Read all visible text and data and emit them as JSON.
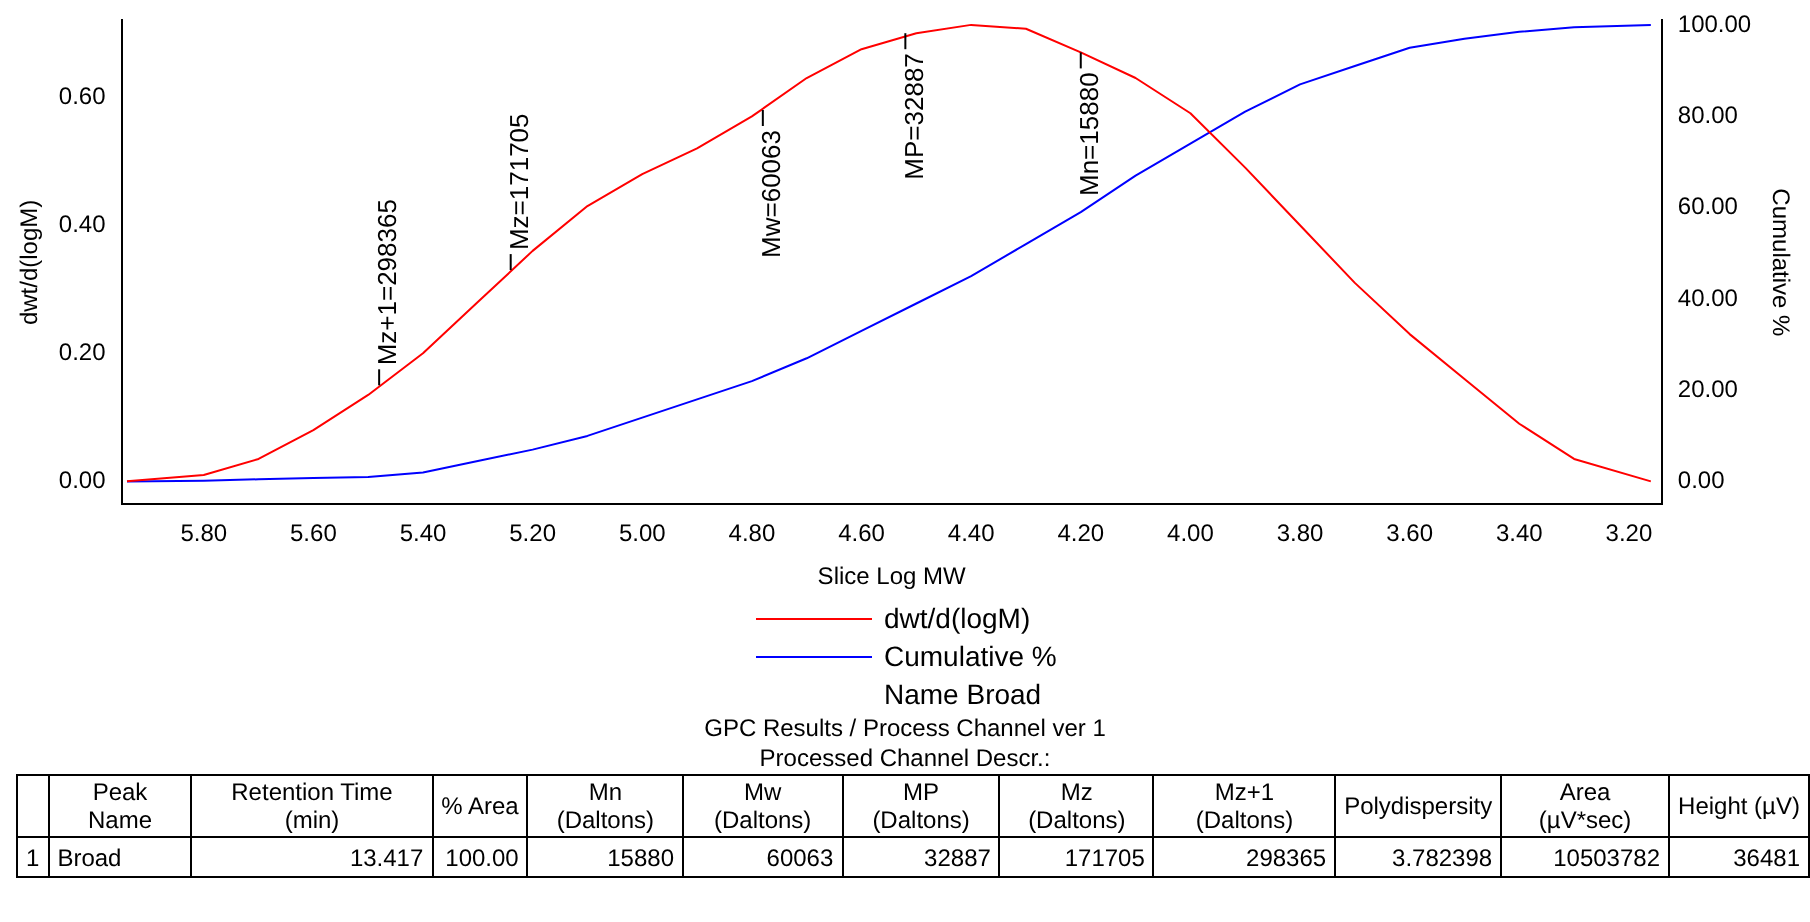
{
  "chart_data": {
    "type": "line",
    "xlabel": "Slice Log MW",
    "ylabel": "dwt/d(logM)",
    "y2label": "Cumulative %",
    "xlim": [
      5.95,
      3.14
    ],
    "xticks": [
      {
        "value": 5.8,
        "label": "5.80"
      },
      {
        "value": 5.6,
        "label": "5.60"
      },
      {
        "value": 5.4,
        "label": "5.40"
      },
      {
        "value": 5.2,
        "label": "5.20"
      },
      {
        "value": 5.0,
        "label": "5.00"
      },
      {
        "value": 4.8,
        "label": "4.80"
      },
      {
        "value": 4.6,
        "label": "4.60"
      },
      {
        "value": 4.4,
        "label": "4.40"
      },
      {
        "value": 4.2,
        "label": "4.20"
      },
      {
        "value": 4.0,
        "label": "4.00"
      },
      {
        "value": 3.8,
        "label": "3.80"
      },
      {
        "value": 3.6,
        "label": "3.60"
      },
      {
        "value": 3.4,
        "label": "3.40"
      },
      {
        "value": 3.2,
        "label": "3.20"
      }
    ],
    "ylim": [
      -0.036,
      0.72
    ],
    "yticks": [
      {
        "value": 0,
        "label": "0.00"
      },
      {
        "value": 0.2,
        "label": "0.20"
      },
      {
        "value": 0.4,
        "label": "0.40"
      },
      {
        "value": 0.6,
        "label": "0.60"
      }
    ],
    "y2lim": [
      -5,
      101
    ],
    "y2ticks": [
      {
        "value": 0,
        "label": "0.00"
      },
      {
        "value": 20,
        "label": "20.00"
      },
      {
        "value": 40,
        "label": "40.00"
      },
      {
        "value": 60,
        "label": "60.00"
      },
      {
        "value": 80,
        "label": "80.00"
      },
      {
        "value": 100,
        "label": "100.00"
      }
    ],
    "x": [
      5.94,
      5.8,
      5.7,
      5.6,
      5.5,
      5.4,
      5.3,
      5.2,
      5.1,
      5.0,
      4.9,
      4.8,
      4.7,
      4.6,
      4.5,
      4.4,
      4.3,
      4.2,
      4.1,
      4.0,
      3.9,
      3.8,
      3.7,
      3.6,
      3.5,
      3.4,
      3.3,
      3.16
    ],
    "series": [
      {
        "name": "dwt/d(logM)",
        "color": "#ff0000",
        "values": [
          0,
          0.01,
          0.035,
          0.08,
          0.135,
          0.2,
          0.28,
          0.36,
          0.43,
          0.48,
          0.52,
          0.57,
          0.63,
          0.675,
          0.7,
          0.713,
          0.707,
          0.67,
          0.63,
          0.575,
          0.49,
          0.4,
          0.31,
          0.23,
          0.16,
          0.09,
          0.035,
          0
        ]
      },
      {
        "name": "Cumulative %",
        "color": "#0000ff",
        "axis": "y2",
        "values": [
          0,
          0.2,
          0.5,
          0.8,
          1,
          2,
          4.5,
          7,
          10,
          14,
          18,
          22,
          27,
          33,
          39,
          45,
          52,
          59,
          67,
          74,
          81,
          87,
          91,
          95,
          97,
          98.5,
          99.5,
          100
        ]
      }
    ],
    "legend": "bottom",
    "grid": false,
    "marker": "none",
    "line_style": "solid",
    "annotations": [
      {
        "text": "Mz+1=298365",
        "x": 5.48,
        "y": 0.15
      },
      {
        "text": "Mz=171705",
        "x": 5.24,
        "y": 0.33
      },
      {
        "text": "Mw=60063",
        "x": 4.78,
        "y": 0.58
      },
      {
        "text": "MP=32887",
        "x": 4.52,
        "y": 0.7
      },
      {
        "text": "Mn=15880",
        "x": 4.2,
        "y": 0.67
      },
      "Name Broad",
      "GPC Results / Process Channel ver 1",
      "Processed Channel Descr.:",
      "Peak Name",
      "Retention Time (min)",
      "% Area",
      "Mn (Daltons)",
      "Mw (Daltons)",
      "MP (Daltons)",
      "Mz (Daltons)",
      "Mz+1 (Daltons)",
      "Polydispersity",
      "Area (µV*sec)",
      "Height (µV)",
      "1",
      "Broad",
      "13.417",
      "100.00",
      "15880",
      "60063",
      "32887",
      "171705",
      "298365",
      "3.782398",
      "10503782",
      "36481"
    ]
  }
}
